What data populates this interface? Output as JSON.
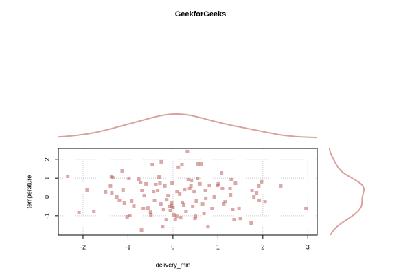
{
  "chart_data": {
    "type": "scatter",
    "title": "GeekforGeeks",
    "x_label": "delivery_min",
    "y_label": "temperature",
    "color": "#b5524e",
    "density_color": "#d9a09c",
    "grid": true,
    "marginal_density": true,
    "xlim": [
      -2.55,
      3.21
    ],
    "ylim": [
      -2.03,
      2.58
    ],
    "xticks": [
      -2,
      -1,
      0,
      1,
      2,
      3
    ],
    "yticks": [
      -1,
      0,
      1,
      2
    ],
    "x": [
      -2.34,
      -2.09,
      -1.91,
      -1.76,
      -1.5,
      -1.39,
      -1.37,
      -1.34,
      -1.36,
      -1.25,
      -1.19,
      -1.13,
      -1.11,
      -1.08,
      -1.02,
      -0.98,
      -0.96,
      -0.92,
      -0.87,
      -0.76,
      -0.72,
      -0.69,
      -0.66,
      -0.7,
      -0.64,
      -0.6,
      -0.56,
      -0.5,
      -0.49,
      -0.46,
      -0.43,
      -0.41,
      -0.38,
      -0.34,
      -0.31,
      -0.29,
      -0.27,
      -0.26,
      -0.23,
      -0.21,
      -0.18,
      -0.15,
      -0.14,
      -0.11,
      -0.08,
      -0.06,
      -0.03,
      -0.03,
      -0.02,
      0.0,
      0.02,
      0.05,
      0.08,
      0.09,
      0.12,
      0.15,
      0.17,
      0.2,
      0.21,
      0.24,
      0.26,
      0.29,
      0.32,
      0.34,
      0.37,
      0.4,
      0.41,
      0.44,
      0.47,
      0.49,
      0.5,
      0.52,
      0.55,
      0.56,
      0.6,
      0.63,
      0.66,
      0.69,
      0.72,
      0.73,
      0.78,
      0.81,
      0.87,
      0.92,
      0.99,
      1.01,
      1.08,
      1.1,
      1.13,
      1.16,
      1.27,
      1.28,
      1.3,
      1.33,
      1.36,
      1.39,
      1.47,
      1.5,
      1.74,
      1.76,
      1.8,
      1.86,
      1.91,
      1.92,
      1.97,
      2.05,
      2.4,
      2.96
    ],
    "y": [
      1.1,
      -0.84,
      0.37,
      -0.77,
      0.26,
      0.59,
      1.1,
      1.03,
      0.22,
      0.0,
      -0.18,
      1.39,
      0.37,
      -0.33,
      -1.06,
      0.99,
      -0.99,
      -0.22,
      -0.48,
      0.95,
      0.77,
      0.33,
      -0.62,
      -1.76,
      0.07,
      0.7,
      -0.59,
      -0.81,
      -0.95,
      1.72,
      0.29,
      -0.18,
      0.66,
      0.33,
      1.06,
      0.73,
      -0.37,
      1.87,
      -1.58,
      -0.66,
      0.59,
      -1.21,
      -0.15,
      0.07,
      -0.51,
      -0.73,
      -0.33,
      -0.48,
      0.73,
      -0.55,
      -0.95,
      -1.21,
      -1.03,
      0.29,
      1.58,
      0.15,
      -1.1,
      1.72,
      -0.29,
      -0.44,
      0.4,
      -0.77,
      2.42,
      0.92,
      0.44,
      0.59,
      0.88,
      -0.51,
      0.29,
      -1.14,
      -1.03,
      -0.22,
      0.99,
      1.76,
      0.7,
      1.76,
      -0.37,
      -0.88,
      0.33,
      -0.07,
      -1.58,
      0.62,
      -0.62,
      0.0,
      0.62,
      0.7,
      1.28,
      0.44,
      -0.37,
      -0.26,
      0.44,
      0.11,
      0.92,
      -0.66,
      -1.21,
      0.73,
      -0.62,
      -1.14,
      -1.39,
      0.33,
      0.0,
      0.22,
      0.59,
      -0.18,
      0.81,
      -0.26,
      0.59,
      -0.62
    ]
  }
}
